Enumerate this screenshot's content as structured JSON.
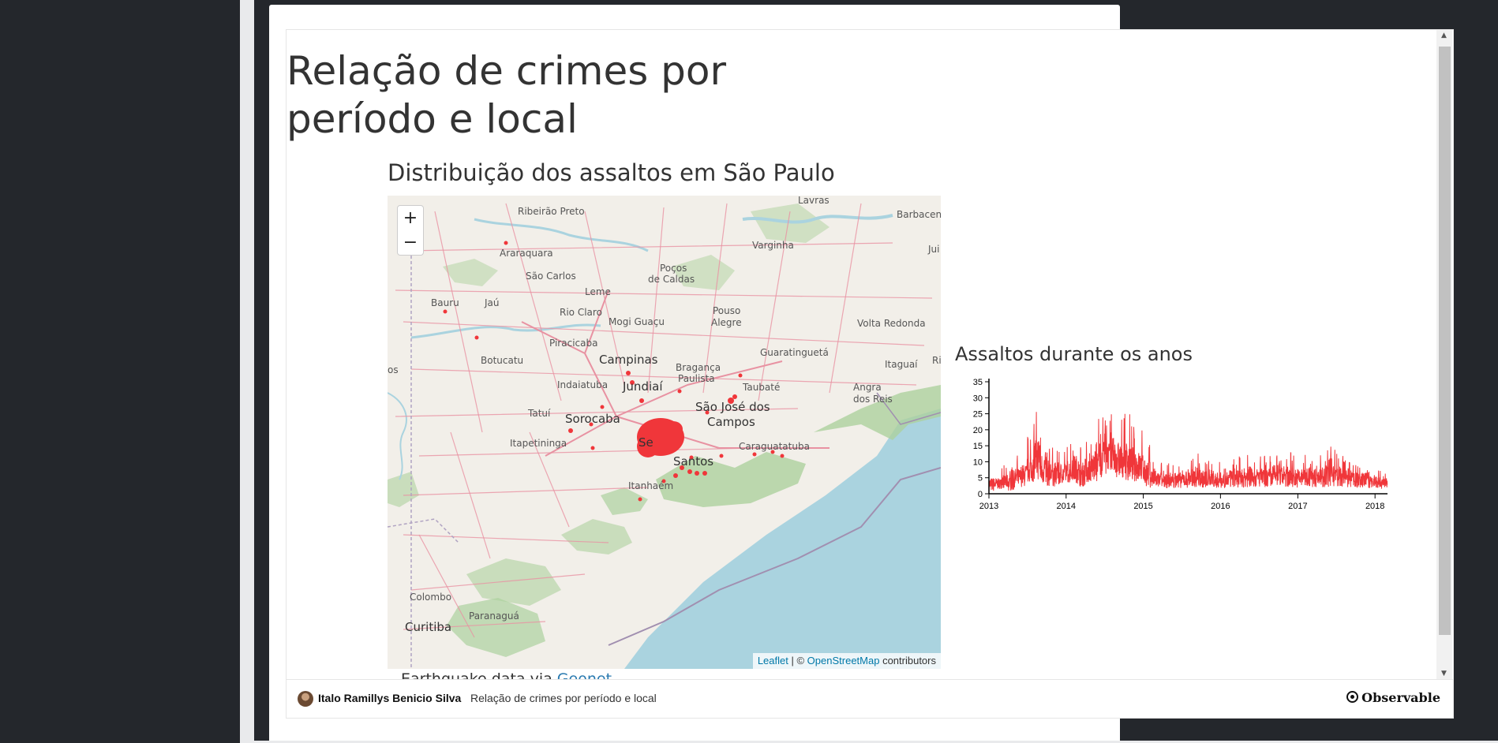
{
  "notebook": {
    "title": "Relação de crimes por período e local"
  },
  "map_section": {
    "title": "Distribuição dos assaltos em São Paulo",
    "zoom_in_label": "+",
    "zoom_out_label": "−",
    "attribution": {
      "leaflet": "Leaflet",
      "separator": " | © ",
      "osm": "OpenStreetMap",
      "suffix": " contributors"
    },
    "places": [
      "Ribeirão Preto",
      "Lavras",
      "Barbacena",
      "Araraquara",
      "Varginha",
      "Jui",
      "São Carlos",
      "Poços",
      "de Caldas",
      "Leme",
      "Bauru",
      "Jaú",
      "Rio Claro",
      "Mogi Guaçu",
      "Pouso",
      "Alegre",
      "Volta Redonda",
      "Piracicaba",
      "Botucatu",
      "Campinas",
      "Guaratinguetá",
      "Bragança",
      "Paulista",
      "Itaguaí",
      "Indaiatuba",
      "Jundiaí",
      "Taubaté",
      "Angra",
      "dos Reis",
      "Tatuí",
      "Sorocaba",
      "São José dos",
      "Campos",
      "Itapetininga",
      "Caraguatatuba",
      "Santos",
      "Itanhaém",
      "Colombo",
      "Curitiba",
      "Paranaguá",
      "os",
      "Ri",
      "Se"
    ],
    "note_prefix": "Earthquake data via ",
    "note_link": "Geonet"
  },
  "chart_section": {
    "title": "Assaltos durante os anos"
  },
  "chart_data": {
    "type": "line",
    "title": "Assaltos durante os anos",
    "xlabel": "",
    "ylabel": "",
    "x_ticks": [
      "2013",
      "2014",
      "2015",
      "2016",
      "2017",
      "2018"
    ],
    "y_ticks": [
      "0",
      "5",
      "10",
      "15",
      "20",
      "25",
      "30",
      "35"
    ],
    "xlim": [
      "2013-01-01",
      "2018-03-01"
    ],
    "ylim": [
      0,
      35
    ],
    "color": "#f0363a",
    "series": [
      {
        "x": [
          "2013-01",
          "2013-02",
          "2013-03",
          "2013-04",
          "2013-05",
          "2013-06",
          "2013-07",
          "2013-08",
          "2013-09",
          "2013-10",
          "2013-11",
          "2013-12",
          "2014-01",
          "2014-02",
          "2014-03",
          "2014-04",
          "2014-05",
          "2014-06",
          "2014-07",
          "2014-08",
          "2014-09",
          "2014-10",
          "2014-11",
          "2014-12",
          "2015-01",
          "2015-02",
          "2015-03",
          "2015-04",
          "2015-05",
          "2015-06",
          "2015-07",
          "2015-08",
          "2015-09",
          "2015-10",
          "2015-11",
          "2015-12",
          "2016-01",
          "2016-02",
          "2016-03",
          "2016-04",
          "2016-05",
          "2016-06",
          "2016-07",
          "2016-08",
          "2016-09",
          "2016-10",
          "2016-11",
          "2016-12",
          "2017-01",
          "2017-02",
          "2017-03",
          "2017-04",
          "2017-05",
          "2017-06",
          "2017-07",
          "2017-08",
          "2017-09",
          "2017-10",
          "2017-11",
          "2017-12",
          "2018-01",
          "2018-02"
        ],
        "low": [
          0,
          1,
          1,
          0,
          1,
          1,
          2,
          2,
          1,
          1,
          1,
          2,
          2,
          2,
          1,
          2,
          2,
          3,
          3,
          3,
          3,
          2,
          2,
          2,
          1,
          1,
          1,
          1,
          1,
          1,
          1,
          1,
          1,
          1,
          1,
          1,
          1,
          1,
          1,
          1,
          1,
          1,
          1,
          1,
          1,
          1,
          1,
          1,
          1,
          1,
          1,
          1,
          1,
          1,
          1,
          1,
          1,
          1,
          1,
          1,
          1,
          1
        ],
        "high": [
          8,
          7,
          9,
          10,
          12,
          14,
          18,
          28,
          20,
          16,
          15,
          14,
          16,
          18,
          15,
          17,
          20,
          24,
          35,
          26,
          24,
          25,
          22,
          20,
          16,
          12,
          10,
          9,
          10,
          10,
          11,
          12,
          13,
          11,
          12,
          10,
          10,
          11,
          12,
          12,
          13,
          12,
          12,
          12,
          14,
          13,
          13,
          12,
          12,
          13,
          12,
          13,
          14,
          17,
          13,
          12,
          11,
          10,
          10,
          9,
          8,
          7
        ]
      }
    ]
  },
  "footer": {
    "author": "Italo Ramillys Benicio Silva",
    "notebook_name": "Relação de crimes por período e local",
    "brand": "Observable"
  }
}
